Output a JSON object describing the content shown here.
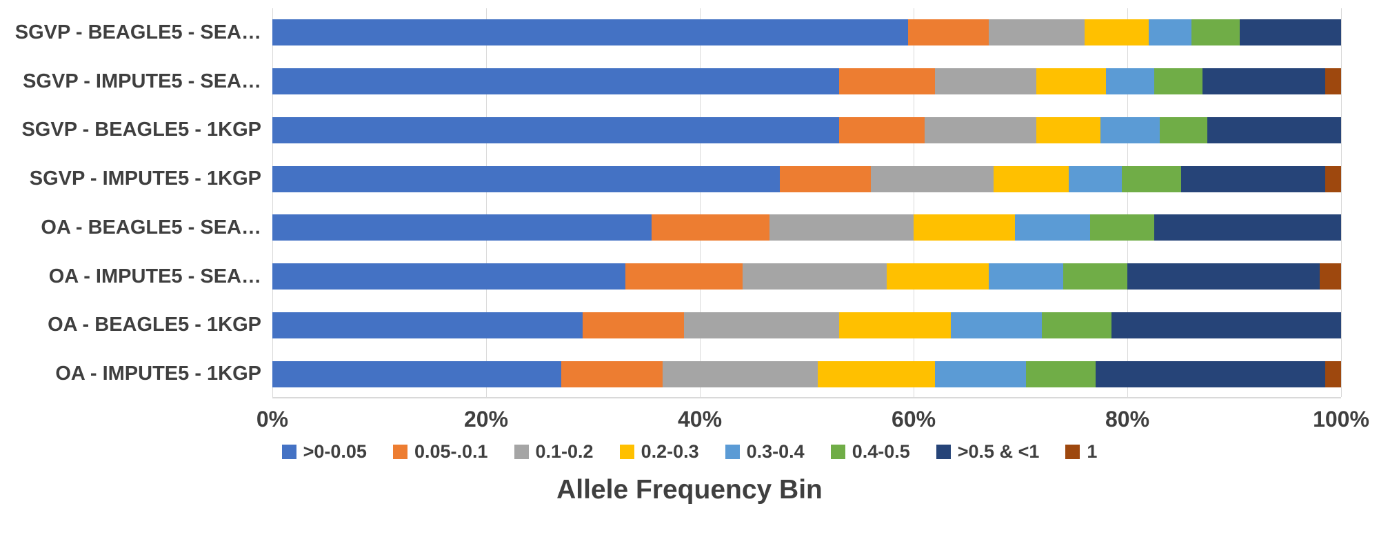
{
  "chart_data": {
    "type": "bar",
    "orientation": "horizontal",
    "stacked": true,
    "title": "",
    "xlabel": "Allele Frequency Bin",
    "ylabel": "",
    "xlim": [
      0,
      100
    ],
    "grid": true,
    "legend_position": "bottom",
    "x_ticks": [
      "0%",
      "20%",
      "40%",
      "60%",
      "80%",
      "100%"
    ],
    "x_tick_values": [
      0,
      20,
      40,
      60,
      80,
      100
    ],
    "categories": [
      "SGVP - BEAGLE5 - SEA…",
      "SGVP - IMPUTE5 - SEA…",
      "SGVP - BEAGLE5 - 1KGP",
      "SGVP - IMPUTE5 - 1KGP",
      "OA - BEAGLE5 - SEA…",
      "OA - IMPUTE5 - SEA…",
      "OA - BEAGLE5 - 1KGP",
      "OA - IMPUTE5 - 1KGP"
    ],
    "series": [
      {
        "name": ">0-0.05",
        "color": "#4472C4",
        "values": [
          59.5,
          53.0,
          53.0,
          47.5,
          35.5,
          33.0,
          29.0,
          27.0
        ]
      },
      {
        "name": "0.05-.0.1",
        "color": "#ED7D31",
        "values": [
          7.5,
          9.0,
          8.0,
          8.5,
          11.0,
          11.0,
          9.5,
          9.5
        ]
      },
      {
        "name": "0.1-0.2",
        "color": "#A5A5A5",
        "values": [
          9.0,
          9.5,
          10.5,
          11.5,
          13.5,
          13.5,
          14.5,
          14.5
        ]
      },
      {
        "name": "0.2-0.3",
        "color": "#FFC000",
        "values": [
          6.0,
          6.5,
          6.0,
          7.0,
          9.5,
          9.5,
          10.5,
          11.0
        ]
      },
      {
        "name": "0.3-0.4",
        "color": "#5B9BD5",
        "values": [
          4.0,
          4.5,
          5.5,
          5.0,
          7.0,
          7.0,
          8.5,
          8.5
        ]
      },
      {
        "name": "0.4-0.5",
        "color": "#70AD47",
        "values": [
          4.5,
          4.5,
          4.5,
          5.5,
          6.0,
          6.0,
          6.5,
          6.5
        ]
      },
      {
        "name": ">0.5 & <1",
        "color": "#264478",
        "values": [
          9.5,
          11.5,
          12.5,
          13.5,
          17.5,
          18.0,
          21.5,
          21.5
        ]
      },
      {
        "name": "1",
        "color": "#9E480E",
        "values": [
          0.0,
          1.5,
          0.0,
          1.5,
          0.0,
          2.0,
          0.0,
          1.5
        ]
      }
    ],
    "colors": {
      "text": "#3f3f3f",
      "gridline": "#D9D9D9",
      "background": "#FFFFFF"
    }
  }
}
